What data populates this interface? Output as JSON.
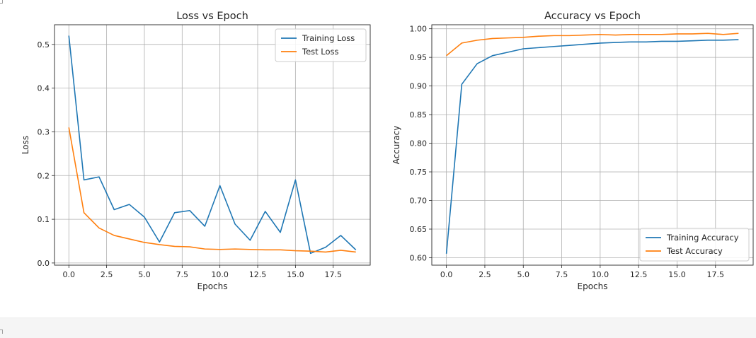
{
  "chart_data": [
    {
      "type": "line",
      "title": "Loss vs Epoch",
      "xlabel": "Epochs",
      "ylabel": "Loss",
      "xlim": [
        -0.95,
        19.95
      ],
      "ylim": [
        -0.005,
        0.545
      ],
      "xticks": [
        0,
        2.5,
        5,
        7.5,
        10,
        12.5,
        15,
        17.5
      ],
      "xtick_labels": [
        "0.0",
        "2.5",
        "5.0",
        "7.5",
        "10.0",
        "12.5",
        "15.0",
        "17.5"
      ],
      "yticks": [
        0.0,
        0.1,
        0.2,
        0.3,
        0.4,
        0.5
      ],
      "ytick_labels": [
        "0.0",
        "0.1",
        "0.2",
        "0.3",
        "0.4",
        "0.5"
      ],
      "grid": true,
      "legend_position": "top-right",
      "x": [
        0,
        1,
        2,
        3,
        4,
        5,
        6,
        7,
        8,
        9,
        10,
        11,
        12,
        13,
        14,
        15,
        16,
        17,
        18,
        19
      ],
      "series": [
        {
          "name": "Training Loss",
          "color": "#1f77b4",
          "values": [
            0.52,
            0.19,
            0.197,
            0.122,
            0.134,
            0.105,
            0.048,
            0.115,
            0.12,
            0.084,
            0.177,
            0.089,
            0.052,
            0.118,
            0.07,
            0.19,
            0.022,
            0.036,
            0.063,
            0.03
          ]
        },
        {
          "name": "Test Loss",
          "color": "#ff7f0e",
          "values": [
            0.31,
            0.115,
            0.08,
            0.063,
            0.055,
            0.047,
            0.042,
            0.038,
            0.037,
            0.032,
            0.031,
            0.032,
            0.031,
            0.03,
            0.03,
            0.028,
            0.027,
            0.025,
            0.029,
            0.025
          ]
        }
      ]
    },
    {
      "type": "line",
      "title": "Accuracy vs Epoch",
      "xlabel": "Epochs",
      "ylabel": "Accuracy",
      "xlim": [
        -0.95,
        19.95
      ],
      "ylim": [
        0.587,
        1.007
      ],
      "xticks": [
        0,
        2.5,
        5,
        7.5,
        10,
        12.5,
        15,
        17.5
      ],
      "xtick_labels": [
        "0.0",
        "2.5",
        "5.0",
        "7.5",
        "10.0",
        "12.5",
        "15.0",
        "17.5"
      ],
      "yticks": [
        0.6,
        0.65,
        0.7,
        0.75,
        0.8,
        0.85,
        0.9,
        0.95,
        1.0
      ],
      "ytick_labels": [
        "0.60",
        "0.65",
        "0.70",
        "0.75",
        "0.80",
        "0.85",
        "0.90",
        "0.95",
        "1.00"
      ],
      "grid": true,
      "legend_position": "bottom-right",
      "x": [
        0,
        1,
        2,
        3,
        4,
        5,
        6,
        7,
        8,
        9,
        10,
        11,
        12,
        13,
        14,
        15,
        16,
        17,
        18,
        19
      ],
      "series": [
        {
          "name": "Training Accuracy",
          "color": "#1f77b4",
          "values": [
            0.607,
            0.903,
            0.939,
            0.953,
            0.959,
            0.965,
            0.967,
            0.969,
            0.971,
            0.973,
            0.975,
            0.976,
            0.977,
            0.977,
            0.978,
            0.978,
            0.979,
            0.98,
            0.98,
            0.981
          ]
        },
        {
          "name": "Test Accuracy",
          "color": "#ff7f0e",
          "values": [
            0.953,
            0.975,
            0.98,
            0.983,
            0.984,
            0.985,
            0.987,
            0.988,
            0.988,
            0.989,
            0.99,
            0.989,
            0.99,
            0.99,
            0.99,
            0.991,
            0.991,
            0.992,
            0.99,
            0.992
          ]
        }
      ]
    }
  ]
}
